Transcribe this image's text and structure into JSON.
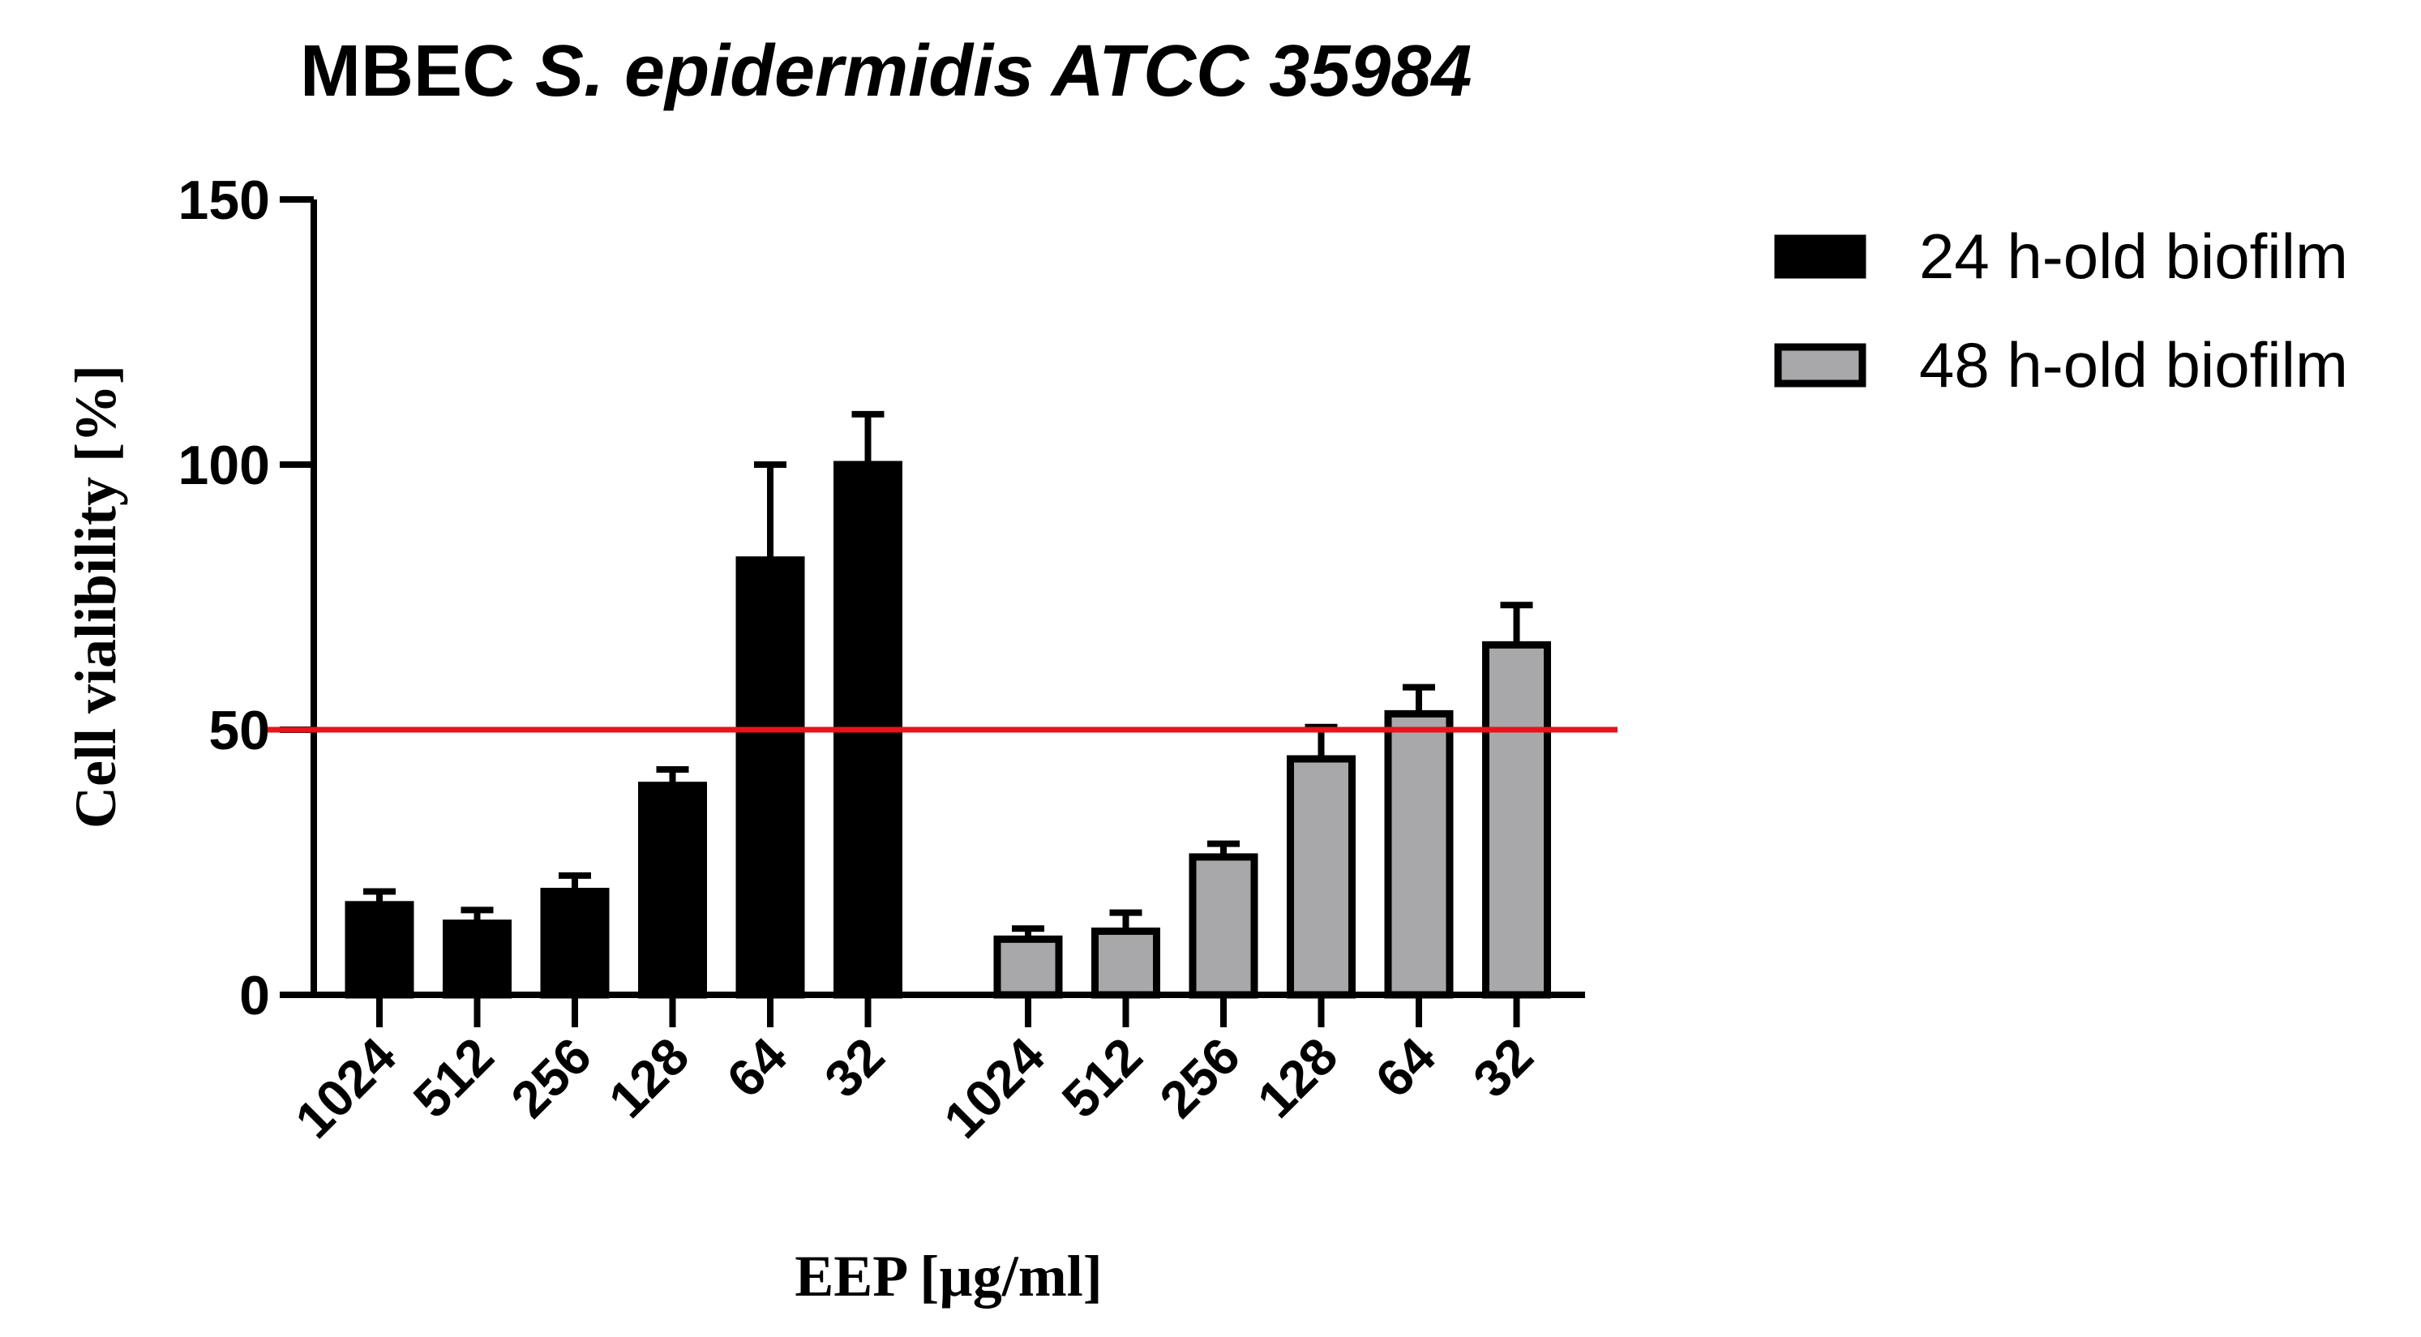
{
  "chart_data": {
    "type": "bar",
    "title_prefix": "MBEC ",
    "title_italic": "S. epidermidis ATCC 35984",
    "xlabel": "EEP [µg/ml]",
    "ylabel": "Cell vialibility [%]",
    "ylim": [
      0,
      150
    ],
    "yticks": [
      0,
      50,
      100,
      150
    ],
    "reference_line": {
      "y": 50,
      "color": "#e8131b"
    },
    "grid": false,
    "legend_position": "top-right",
    "series": [
      {
        "name": "24 h-old biofilm",
        "color": "#000000",
        "categories": [
          "1024",
          "512",
          "256",
          "128",
          "64",
          "32"
        ],
        "values": [
          17,
          13.5,
          19.5,
          39.5,
          82,
          100
        ],
        "error": [
          2.5,
          2.5,
          3,
          3,
          18,
          9.5
        ]
      },
      {
        "name": "48 h-old biofilm",
        "color": "#a8a8ab",
        "categories": [
          "1024",
          "512",
          "256",
          "128",
          "64",
          "32"
        ],
        "values": [
          10.5,
          12,
          26,
          44.5,
          53,
          66
        ],
        "error": [
          2,
          3.5,
          2.5,
          6,
          5,
          7.5
        ]
      }
    ]
  }
}
